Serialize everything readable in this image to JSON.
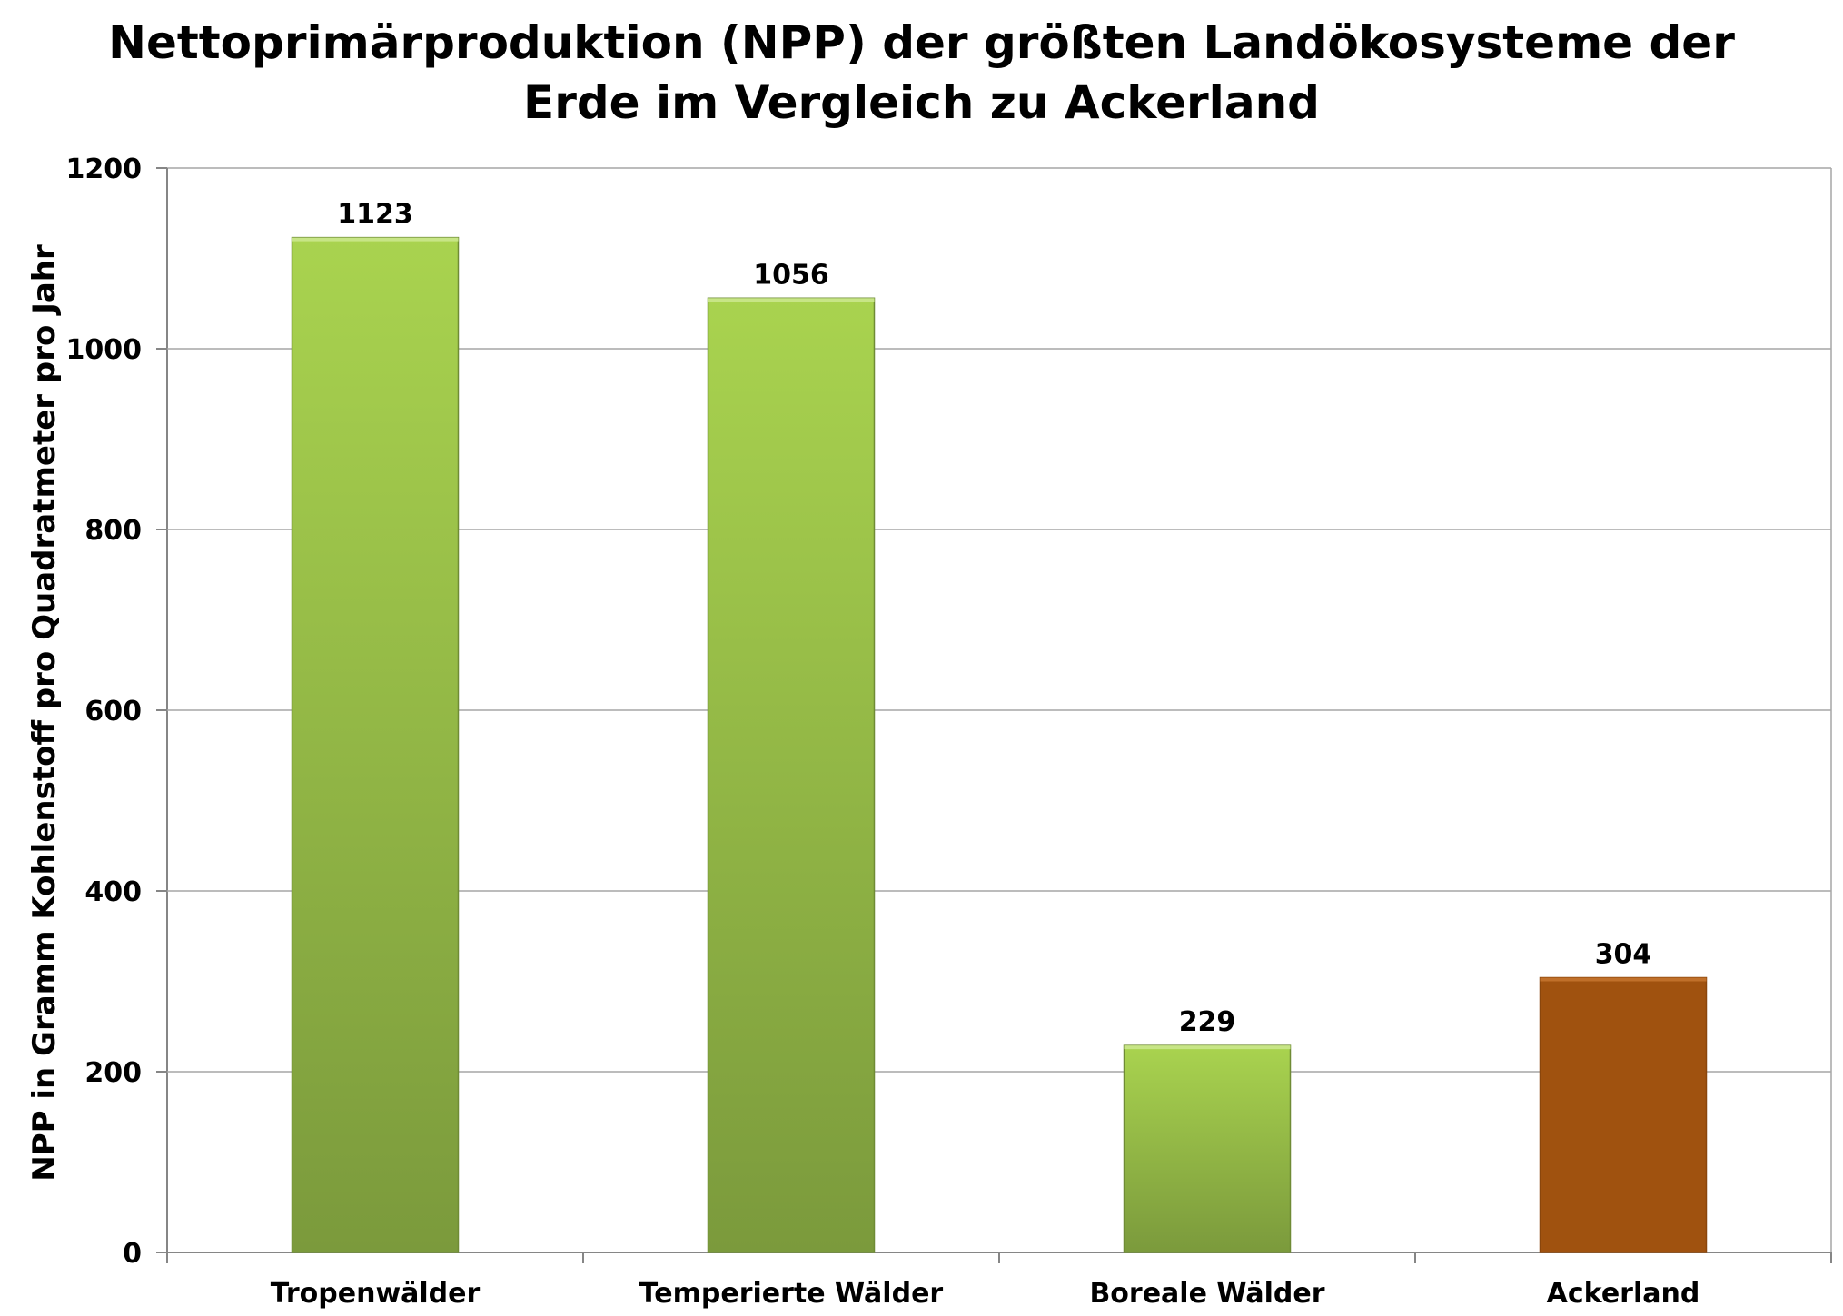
{
  "chart_data": {
    "type": "bar",
    "title_line1": "Nettoprimärproduktion (NPP) der größten Landökosysteme der",
    "title_line2": "Erde im Vergleich zu Ackerland",
    "ylabel": "NPP in Gramm Kohlenstoff pro Quadratmeter pro Jahr",
    "xlabel": "",
    "categories": [
      "Tropenwälder",
      "Temperierte Wälder",
      "Boreale Wälder",
      "Ackerland"
    ],
    "values": [
      1123,
      1056,
      229,
      304
    ],
    "data_labels": [
      "1123",
      "1056",
      "229",
      "304"
    ],
    "ylim": [
      0,
      1200
    ],
    "yticks": [
      "0",
      "200",
      "400",
      "600",
      "800",
      "1000",
      "1200"
    ],
    "grid": true,
    "legend": "none",
    "colors": {
      "forest_top": "#a9d34f",
      "forest_bottom": "#7b9a3c",
      "cropland": "#a0520f",
      "gridline": "#a6a6a6",
      "axis": "#868686"
    },
    "bar_kinds": [
      "forest",
      "forest",
      "forest",
      "cropland"
    ]
  }
}
